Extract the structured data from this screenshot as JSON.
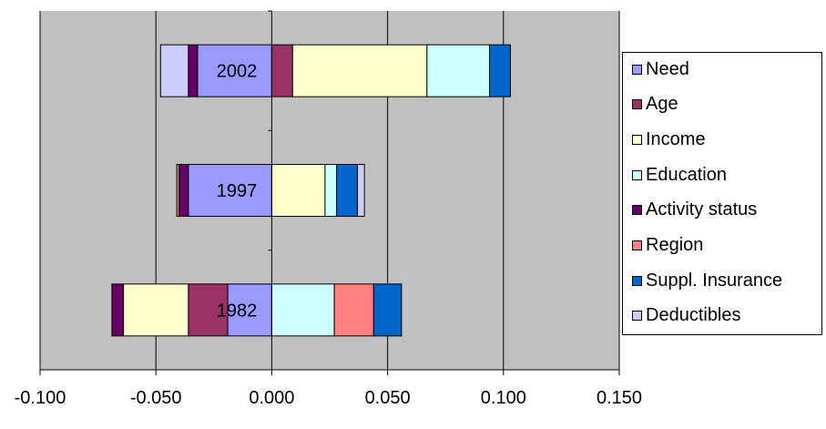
{
  "chart_data": {
    "type": "bar",
    "orientation": "horizontal",
    "stacked": true,
    "categories": [
      "2002",
      "1997",
      "1982"
    ],
    "xlim": [
      -0.1,
      0.15
    ],
    "x_ticks": [
      "-0.100",
      "-0.050",
      "0.000",
      "0.050",
      "0.100",
      "0.150"
    ],
    "x_tick_values": [
      -0.1,
      -0.05,
      0.0,
      0.05,
      0.1,
      0.15
    ],
    "grid": true,
    "legend_position": "right",
    "background_color": "#C0C0C0",
    "series": [
      {
        "name": "Need",
        "color": "#9999FF",
        "values": [
          -0.032,
          -0.036,
          -0.019
        ]
      },
      {
        "name": "Age",
        "color": "#993366",
        "values": [
          0.009,
          0.0,
          -0.017
        ]
      },
      {
        "name": "Income",
        "color": "#FFFFCC",
        "values": [
          0.058,
          0.023,
          -0.028
        ]
      },
      {
        "name": "Education",
        "color": "#CCFFFF",
        "values": [
          0.027,
          0.005,
          0.027
        ]
      },
      {
        "name": "Activity status",
        "color": "#660066",
        "values": [
          -0.004,
          -0.004,
          -0.005
        ]
      },
      {
        "name": "Region",
        "color": "#FF8080",
        "values": [
          0.0,
          -0.001,
          0.017
        ]
      },
      {
        "name": "Suppl. Insurance",
        "color": "#0066CC",
        "values": [
          0.009,
          0.009,
          0.012
        ]
      },
      {
        "name": "Deductibles",
        "color": "#CCCCFF",
        "values": [
          -0.012,
          0.003,
          0.0
        ]
      }
    ]
  }
}
